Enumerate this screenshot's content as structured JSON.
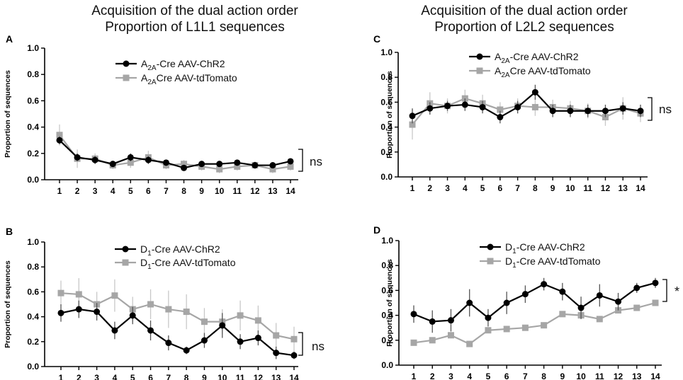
{
  "titles": {
    "left_line1": "Acquisition of the dual action order",
    "left_line2": "Proportion of L1L1 sequences",
    "right_line1": "Acquisition of the dual action order",
    "right_line2": "Proportion of L2L2 sequences"
  },
  "colors": {
    "black_series": "#000000",
    "gray_series": "#a6a6a6",
    "gray_err": "#c8c8c8"
  },
  "chart_data": [
    {
      "panel": "A",
      "type": "line",
      "ylabel": "Proportion of sequences",
      "xlabel": "",
      "ylim": [
        0,
        1.0
      ],
      "yticks": [
        "0.0",
        "0.2",
        "0.4",
        "0.6",
        "0.8",
        "1.0"
      ],
      "categories": [
        "1",
        "2",
        "3",
        "4",
        "5",
        "6",
        "7",
        "8",
        "9",
        "10",
        "11",
        "12",
        "13",
        "14"
      ],
      "legend_position": "top-center",
      "series": [
        {
          "name": "A2A-Cre AAV-ChR2",
          "legend_main": "A",
          "legend_sub": "2A",
          "legend_rest": "-Cre AAV-ChR2",
          "style": "black-circle",
          "values": [
            0.3,
            0.17,
            0.15,
            0.12,
            0.17,
            0.15,
            0.13,
            0.09,
            0.12,
            0.12,
            0.13,
            0.11,
            0.11,
            0.14
          ],
          "errors": [
            0.03,
            0.03,
            0.03,
            0.02,
            0.03,
            0.03,
            0.02,
            0.02,
            0.02,
            0.02,
            0.02,
            0.02,
            0.02,
            0.02
          ]
        },
        {
          "name": "A2ACre AAV-tdTomato",
          "legend_main": "A",
          "legend_sub": "2A",
          "legend_rest": "Cre AAV-tdTomato",
          "style": "gray-square",
          "values": [
            0.34,
            0.16,
            0.16,
            0.11,
            0.13,
            0.17,
            0.11,
            0.12,
            0.1,
            0.08,
            0.1,
            0.11,
            0.08,
            0.1
          ],
          "errors": [
            0.08,
            0.07,
            0.04,
            0.03,
            0.04,
            0.05,
            0.03,
            0.03,
            0.03,
            0.03,
            0.03,
            0.03,
            0.03,
            0.03
          ]
        }
      ],
      "annotation": "ns"
    },
    {
      "panel": "B",
      "type": "line",
      "ylabel": "Proportion of sequences",
      "xlabel": "",
      "ylim": [
        0,
        1.0
      ],
      "yticks": [
        "0.0",
        "0.2",
        "0.4",
        "0.6",
        "0.8",
        "1.0"
      ],
      "categories": [
        "1",
        "2",
        "3",
        "4",
        "5",
        "6",
        "7",
        "8",
        "9",
        "10",
        "11",
        "12",
        "13",
        "14"
      ],
      "legend_position": "top-center",
      "series": [
        {
          "name": "D1-Cre AAV-ChR2",
          "legend_main": "D",
          "legend_sub": "1",
          "legend_rest": "-Cre AAV-ChR2",
          "style": "black-circle",
          "values": [
            0.43,
            0.46,
            0.44,
            0.29,
            0.41,
            0.29,
            0.19,
            0.13,
            0.21,
            0.33,
            0.2,
            0.23,
            0.11,
            0.09
          ],
          "errors": [
            0.07,
            0.07,
            0.07,
            0.07,
            0.07,
            0.08,
            0.06,
            0.03,
            0.06,
            0.1,
            0.06,
            0.06,
            0.05,
            0.03
          ]
        },
        {
          "name": "D1-Cre AAV-tdTomato",
          "legend_main": "D",
          "legend_sub": "1",
          "legend_rest": "-Cre AAV-tdTomato",
          "style": "gray-square",
          "values": [
            0.59,
            0.58,
            0.5,
            0.57,
            0.46,
            0.5,
            0.46,
            0.44,
            0.36,
            0.36,
            0.41,
            0.37,
            0.25,
            0.22
          ],
          "errors": [
            0.1,
            0.13,
            0.1,
            0.13,
            0.1,
            0.12,
            0.15,
            0.14,
            0.11,
            0.1,
            0.12,
            0.12,
            0.1,
            0.1
          ]
        }
      ],
      "annotation": "ns"
    },
    {
      "panel": "C",
      "type": "line",
      "ylabel": "Proportion of sequences",
      "xlabel": "",
      "ylim": [
        0,
        1.0
      ],
      "yticks": [
        "0.0",
        "0.2",
        "0.4",
        "0.6",
        "0.8",
        "1.0"
      ],
      "categories": [
        "1",
        "2",
        "3",
        "4",
        "5",
        "6",
        "7",
        "8",
        "9",
        "10",
        "11",
        "12",
        "13",
        "14"
      ],
      "legend_position": "top-center",
      "series": [
        {
          "name": "A2A-Cre AAV-ChR2",
          "legend_main": "A",
          "legend_sub": "2A",
          "legend_rest": "-Cre AAV-ChR2",
          "style": "black-circle",
          "values": [
            0.49,
            0.55,
            0.57,
            0.58,
            0.56,
            0.48,
            0.56,
            0.68,
            0.53,
            0.53,
            0.53,
            0.53,
            0.55,
            0.53
          ],
          "errors": [
            0.06,
            0.05,
            0.04,
            0.05,
            0.05,
            0.05,
            0.05,
            0.06,
            0.05,
            0.05,
            0.05,
            0.05,
            0.05,
            0.05
          ]
        },
        {
          "name": "A2ACre AAV-tdTomato",
          "legend_main": "A",
          "legend_sub": "2A",
          "legend_rest": "Cre AAV-tdTomato",
          "style": "gray-square",
          "values": [
            0.42,
            0.59,
            0.57,
            0.63,
            0.59,
            0.54,
            0.57,
            0.56,
            0.56,
            0.55,
            0.53,
            0.48,
            0.55,
            0.51
          ],
          "errors": [
            0.12,
            0.09,
            0.06,
            0.07,
            0.07,
            0.06,
            0.06,
            0.07,
            0.06,
            0.06,
            0.06,
            0.07,
            0.09,
            0.07
          ]
        }
      ],
      "annotation": "ns"
    },
    {
      "panel": "D",
      "type": "line",
      "ylabel": "Proportion of sequences",
      "xlabel": "",
      "ylim": [
        0,
        1.0
      ],
      "yticks": [
        "0.0",
        "0.2",
        "0.4",
        "0.6",
        "0.8",
        "1.0"
      ],
      "categories": [
        "1",
        "2",
        "3",
        "4",
        "5",
        "6",
        "7",
        "8",
        "9",
        "10",
        "11",
        "12",
        "13",
        "14"
      ],
      "legend_position": "top-center",
      "series": [
        {
          "name": "D1-Cre AAV-ChR2",
          "legend_main": "D",
          "legend_sub": "1",
          "legend_rest": "-Cre AAV-ChR2",
          "style": "black-circle",
          "values": [
            0.41,
            0.35,
            0.36,
            0.5,
            0.38,
            0.5,
            0.57,
            0.65,
            0.59,
            0.46,
            0.56,
            0.51,
            0.62,
            0.66
          ],
          "errors": [
            0.07,
            0.09,
            0.09,
            0.11,
            0.07,
            0.09,
            0.07,
            0.05,
            0.07,
            0.09,
            0.09,
            0.07,
            0.04,
            0.04
          ]
        },
        {
          "name": "D1-Cre AAV-tdTomato",
          "legend_main": "D",
          "legend_sub": "1",
          "legend_rest": "-Cre AAV-tdTomato",
          "style": "gray-square",
          "values": [
            0.18,
            0.2,
            0.24,
            0.17,
            0.28,
            0.29,
            0.3,
            0.32,
            0.41,
            0.4,
            0.37,
            0.44,
            0.46,
            0.5
          ],
          "errors": [
            0.02,
            0.02,
            0.02,
            0.02,
            0.02,
            0.02,
            0.02,
            0.02,
            0.02,
            0.02,
            0.02,
            0.02,
            0.02,
            0.02
          ]
        }
      ],
      "annotation": "*"
    }
  ]
}
